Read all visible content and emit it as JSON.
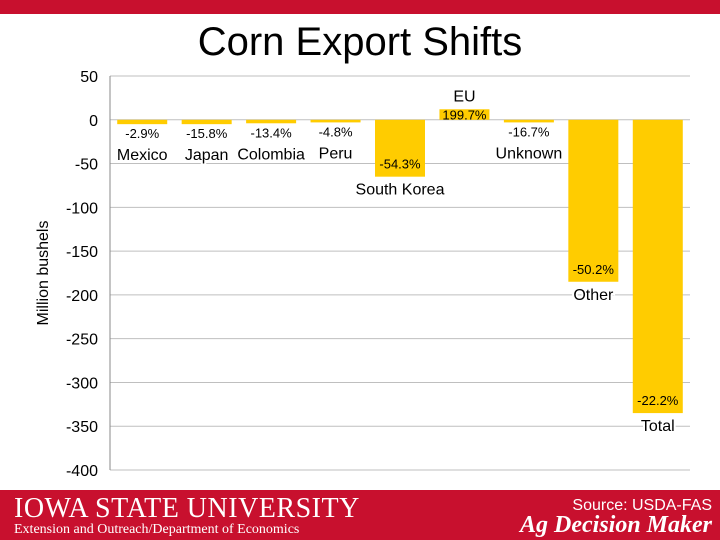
{
  "title": "Corn Export Shifts",
  "footer": {
    "logo_text": "IOWA STATE UNIVERSITY",
    "subtitle": "Extension and Outreach/Department of Economics",
    "source": "Source: USDA-FAS",
    "brand": "Ag Decision Maker"
  },
  "colors": {
    "bar": "#ffcc00",
    "footer": "#c8102e",
    "grid": "#bfbfbf"
  },
  "chart_data": {
    "type": "bar",
    "title": "Corn Export Shifts",
    "xlabel": "",
    "ylabel": "Million bushels",
    "ylim": [
      -400,
      50
    ],
    "yticks": [
      50,
      0,
      -50,
      -100,
      -150,
      -200,
      -250,
      -300,
      -350,
      -400
    ],
    "grid": true,
    "categories": [
      "Mexico",
      "Japan",
      "Colombia",
      "Peru",
      "South Korea",
      "EU",
      "Unknown",
      "Other",
      "Total"
    ],
    "values": [
      -5,
      -5,
      -4,
      -3,
      -65,
      12,
      -3,
      -185,
      -335
    ],
    "pct_labels": [
      "-2.9%",
      "-15.8%",
      "-13.4%",
      "-4.8%",
      "-54.3%",
      "199.7%",
      "-16.7%",
      "-50.2%",
      "-22.2%"
    ]
  }
}
